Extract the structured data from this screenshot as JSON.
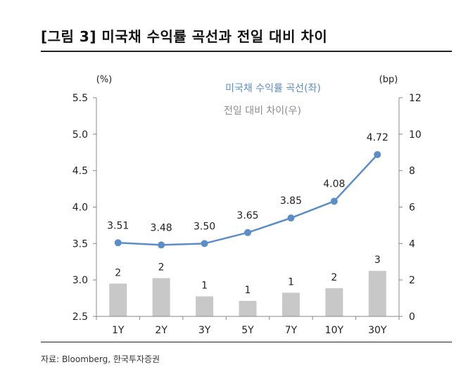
{
  "figure": {
    "title": "[그림 3] 미국채 수익률 곡선과 전일 대비 차이",
    "source": "자료: Bloomberg, 한국투자증권"
  },
  "chart_data": {
    "type": "bar+line",
    "categories": [
      "1Y",
      "2Y",
      "3Y",
      "5Y",
      "7Y",
      "10Y",
      "30Y"
    ],
    "series": [
      {
        "name": "미국채 수익률 곡선(좌)",
        "type": "line",
        "axis": "left",
        "color": "#5b8ec9",
        "values": [
          3.51,
          3.48,
          3.5,
          3.65,
          3.85,
          4.08,
          4.72
        ],
        "labels": [
          "3.51",
          "3.48",
          "3.50",
          "3.65",
          "3.85",
          "4.08",
          "4.72"
        ]
      },
      {
        "name": "전일 대비 차이(우)",
        "type": "bar",
        "axis": "right",
        "color": "#c8c8c8",
        "values": [
          1.8,
          2.1,
          1.1,
          0.85,
          1.3,
          1.55,
          2.5
        ],
        "labels": [
          "2",
          "2",
          "1",
          "1",
          "1",
          "2",
          "3"
        ]
      }
    ],
    "y_left": {
      "unit": "(%)",
      "ylim": [
        2.5,
        5.5
      ],
      "ticks": [
        "2.5",
        "3.0",
        "3.5",
        "4.0",
        "4.5",
        "5.0",
        "5.5"
      ]
    },
    "y_right": {
      "unit": "(bp)",
      "ylim": [
        0,
        12
      ],
      "ticks": [
        "0",
        "2",
        "4",
        "6",
        "8",
        "10",
        "12"
      ]
    },
    "legend": {
      "position": "top-center"
    },
    "grid": false
  }
}
